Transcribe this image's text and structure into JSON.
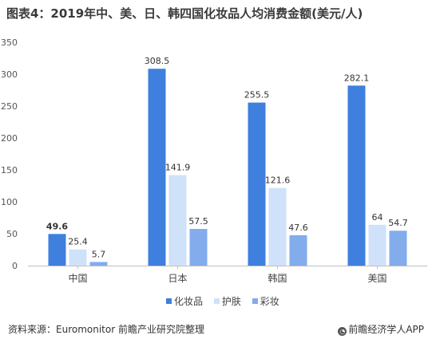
{
  "title": "图表4：2019年中、美、日、韩四国化妆品人均消费金额(美元/人)",
  "source": "资料来源：Euromonitor 前瞻产业研究院整理",
  "credit": "前瞻经济学人APP",
  "chart_data": {
    "type": "bar",
    "title": "图表4：2019年中、美、日、韩四国化妆品人均消费金额(美元/人)",
    "categories": [
      "中国",
      "日本",
      "韩国",
      "美国"
    ],
    "series": [
      {
        "name": "化妆品",
        "color": "#3f7fde",
        "values": [
          49.6,
          308.5,
          255.5,
          282.1
        ],
        "labels": [
          "49.6",
          "308.5",
          "255.5",
          "282.1"
        ]
      },
      {
        "name": "护肤",
        "color": "#cfe2fa",
        "values": [
          25.4,
          141.9,
          121.6,
          64
        ],
        "labels": [
          "25.4",
          "141.9",
          "121.6",
          "64"
        ]
      },
      {
        "name": "彩妆",
        "color": "#82acec",
        "values": [
          5.7,
          57.5,
          47.6,
          54.7
        ],
        "labels": [
          "5.7",
          "57.5",
          "47.6",
          "54.7"
        ]
      }
    ],
    "yticks": [
      "0",
      "50",
      "100",
      "150",
      "200",
      "250",
      "300",
      "350"
    ],
    "ylim": [
      0,
      350
    ],
    "grid": false,
    "legend": "bottom"
  }
}
